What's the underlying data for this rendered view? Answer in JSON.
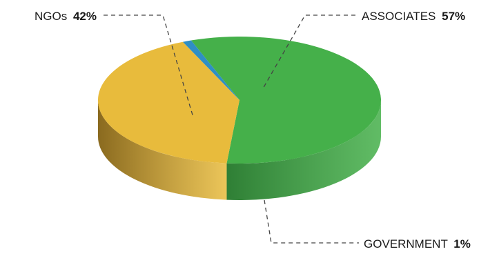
{
  "chart_data": {
    "type": "pie",
    "style": "3d",
    "categories": [
      "ASSOCIATES",
      "NGOs",
      "GOVERNMENT"
    ],
    "values": [
      57,
      42,
      1
    ],
    "value_labels": [
      "57%",
      "42%",
      "1%"
    ],
    "colors": [
      "#45b04a",
      "#e8bb3c",
      "#2f8fc4"
    ],
    "side_colors": [
      "#2f7f35",
      "#8a6a1f",
      "#1f5f8c"
    ],
    "title": "",
    "legend": "none"
  }
}
